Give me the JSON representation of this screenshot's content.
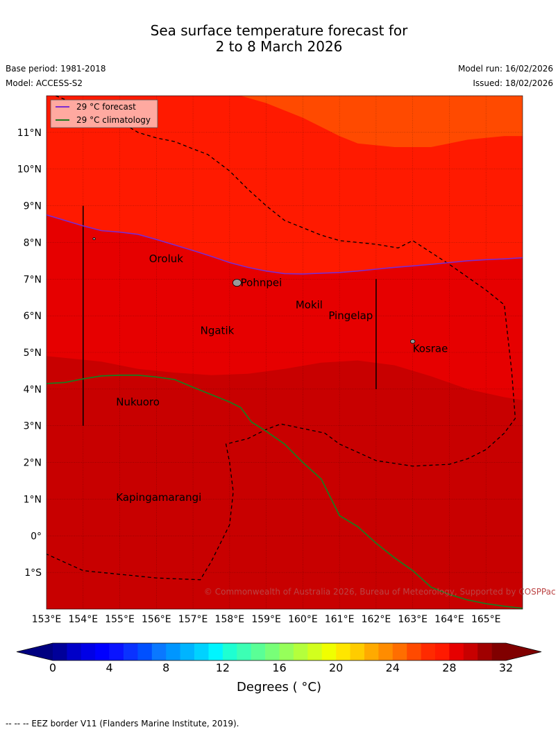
{
  "title": {
    "line1": "Sea surface temperature forecast for",
    "line2": "2 to 8 March 2026"
  },
  "meta": {
    "base_period": "Base period: 1981-2018",
    "model": "Model: ACCESS-S2",
    "model_run": "Model run: 16/02/2026",
    "issued": "Issued: 18/02/2026"
  },
  "map": {
    "lon_range": [
      153,
      166
    ],
    "lat_range": [
      -2,
      12
    ],
    "lon_ticks": [
      "153°E",
      "154°E",
      "155°E",
      "156°E",
      "157°E",
      "158°E",
      "159°E",
      "160°E",
      "161°E",
      "162°E",
      "163°E",
      "164°E",
      "165°E"
    ],
    "lat_ticks": [
      "1°S",
      "0°",
      "1°N",
      "2°N",
      "3°N",
      "4°N",
      "5°N",
      "6°N",
      "7°N",
      "8°N",
      "9°N",
      "10°N",
      "11°N"
    ],
    "copyright": "© Commonwealth of Australia 2026, Bureau of Meteorology, Supported by COSPPac",
    "legend": {
      "forecast": "29 °C  forecast",
      "climatology": "29 °C  climatology",
      "forecast_color": "#7b2bd0",
      "climatology_color": "#1e7a1e"
    },
    "places": [
      {
        "name": "Oroluk",
        "lon": 155.8,
        "lat": 7.55
      },
      {
        "name": "Pohnpei",
        "lon": 158.3,
        "lat": 6.9
      },
      {
        "name": "Mokil",
        "lon": 159.8,
        "lat": 6.3
      },
      {
        "name": "Pingelap",
        "lon": 160.7,
        "lat": 6.0
      },
      {
        "name": "Ngatik",
        "lon": 157.2,
        "lat": 5.6
      },
      {
        "name": "Kosrae",
        "lon": 163.0,
        "lat": 5.1
      },
      {
        "name": "Nukuoro",
        "lon": 154.9,
        "lat": 3.65
      },
      {
        "name": "Kapingamarangi",
        "lon": 154.9,
        "lat": 1.05
      }
    ],
    "islands": [
      {
        "lon": 158.2,
        "lat": 6.9,
        "r": 1.0
      },
      {
        "lon": 163.0,
        "lat": 5.3,
        "r": 0.55
      },
      {
        "lon": 154.3,
        "lat": 8.1,
        "r": 0.3
      }
    ],
    "forecast_29_isotherm": [
      [
        153,
        8.75
      ],
      [
        153.5,
        8.6
      ],
      [
        154,
        8.45
      ],
      [
        154.5,
        8.32
      ],
      [
        155,
        8.28
      ],
      [
        155.5,
        8.22
      ],
      [
        156,
        8.08
      ],
      [
        156.5,
        7.93
      ],
      [
        157,
        7.78
      ],
      [
        157.5,
        7.62
      ],
      [
        158,
        7.45
      ],
      [
        158.5,
        7.32
      ],
      [
        159,
        7.22
      ],
      [
        159.5,
        7.15
      ],
      [
        160,
        7.14
      ],
      [
        160.5,
        7.16
      ],
      [
        161,
        7.18
      ],
      [
        161.5,
        7.22
      ],
      [
        162,
        7.27
      ],
      [
        162.5,
        7.32
      ],
      [
        163,
        7.36
      ],
      [
        163.5,
        7.4
      ],
      [
        164,
        7.45
      ],
      [
        164.5,
        7.5
      ],
      [
        165,
        7.53
      ],
      [
        165.5,
        7.55
      ],
      [
        166,
        7.58
      ]
    ],
    "climatology_29_isotherm": [
      [
        153,
        4.15
      ],
      [
        153.5,
        4.18
      ],
      [
        154,
        4.28
      ],
      [
        154.5,
        4.36
      ],
      [
        155,
        4.38
      ],
      [
        155.5,
        4.38
      ],
      [
        156,
        4.33
      ],
      [
        156.5,
        4.26
      ],
      [
        157,
        4.05
      ],
      [
        157.5,
        3.85
      ],
      [
        158,
        3.65
      ],
      [
        158.3,
        3.5
      ],
      [
        158.6,
        3.1
      ],
      [
        159,
        2.85
      ],
      [
        159.5,
        2.5
      ],
      [
        160,
        2.0
      ],
      [
        160.5,
        1.55
      ],
      [
        161,
        0.55
      ],
      [
        161.5,
        0.25
      ],
      [
        162,
        -0.2
      ],
      [
        162.5,
        -0.6
      ],
      [
        163,
        -0.95
      ],
      [
        163.5,
        -1.4
      ],
      [
        164,
        -1.6
      ],
      [
        164.5,
        -1.75
      ],
      [
        165,
        -1.85
      ],
      [
        165.5,
        -1.92
      ],
      [
        166,
        -1.98
      ]
    ],
    "eez_border": [
      [
        153.25,
        12
      ],
      [
        154,
        11.7
      ],
      [
        155,
        11.3
      ],
      [
        155.5,
        11.0
      ],
      [
        156,
        10.85
      ],
      [
        156.5,
        10.75
      ],
      [
        157,
        10.55
      ],
      [
        157.4,
        10.4
      ],
      [
        158,
        9.95
      ],
      [
        158.5,
        9.45
      ],
      [
        159,
        9.0
      ],
      [
        159.5,
        8.6
      ],
      [
        160,
        8.4
      ],
      [
        160.5,
        8.2
      ],
      [
        161,
        8.05
      ],
      [
        162,
        7.95
      ],
      [
        162.6,
        7.85
      ],
      [
        163,
        8.05
      ],
      [
        164,
        7.4
      ],
      [
        165,
        6.7
      ],
      [
        165.5,
        6.3
      ],
      [
        165.7,
        4.5
      ],
      [
        165.8,
        3.2
      ],
      [
        165.5,
        2.8
      ],
      [
        165,
        2.35
      ],
      [
        164.5,
        2.1
      ],
      [
        164,
        1.95
      ],
      [
        163,
        1.9
      ],
      [
        162,
        2.05
      ],
      [
        161,
        2.5
      ],
      [
        160.6,
        2.8
      ],
      [
        159.4,
        3.05
      ],
      [
        159,
        2.9
      ],
      [
        158.5,
        2.65
      ],
      [
        157.9,
        2.5
      ],
      [
        158,
        2.0
      ],
      [
        158.1,
        1.2
      ],
      [
        158,
        0.3
      ],
      [
        157.5,
        -0.7
      ],
      [
        157.2,
        -1.2
      ],
      [
        156,
        -1.15
      ],
      [
        155,
        -1.05
      ],
      [
        154,
        -0.95
      ],
      [
        153,
        -0.5
      ]
    ],
    "vertical_lines": [
      {
        "lon": 154.0,
        "lat_from": 3.0,
        "lat_to": 9.0
      },
      {
        "lon": 162.0,
        "lat_from": 4.0,
        "lat_to": 7.0
      }
    ],
    "regions": {
      "orange_top": [
        [
          153,
          12
        ],
        [
          158.3,
          12
        ],
        [
          159,
          11.8
        ],
        [
          160,
          11.4
        ],
        [
          161,
          10.9
        ],
        [
          161.5,
          10.7
        ],
        [
          162.5,
          10.6
        ],
        [
          163.5,
          10.6
        ],
        [
          164.5,
          10.8
        ],
        [
          165.5,
          10.9
        ],
        [
          166,
          10.9
        ],
        [
          166,
          12
        ]
      ],
      "band_low_boundary": [
        [
          153,
          4.9
        ],
        [
          153.5,
          4.85
        ],
        [
          154.5,
          4.75
        ],
        [
          155.5,
          4.55
        ],
        [
          156.5,
          4.45
        ],
        [
          157.5,
          4.38
        ],
        [
          158.5,
          4.42
        ],
        [
          159.5,
          4.55
        ],
        [
          160.5,
          4.72
        ],
        [
          161.5,
          4.78
        ],
        [
          162.5,
          4.65
        ],
        [
          163.5,
          4.35
        ],
        [
          164.5,
          4.0
        ],
        [
          165.5,
          3.78
        ],
        [
          166,
          3.7
        ]
      ]
    },
    "colors": {
      "orange": "#ff4a00",
      "red_bright": "#ff1a00",
      "red_mid": "#e60000",
      "red_dark": "#c80000"
    }
  },
  "colorbar": {
    "title": "Degrees ( °C)",
    "tick_labels": [
      "0",
      "4",
      "8",
      "12",
      "16",
      "20",
      "24",
      "28",
      "32"
    ],
    "tick_values": [
      0,
      4,
      8,
      12,
      16,
      20,
      24,
      28,
      32
    ],
    "range": [
      0,
      32
    ],
    "colors": [
      "#000099",
      "#0000c8",
      "#0000e6",
      "#0000ff",
      "#0a14ff",
      "#0a32ff",
      "#0050ff",
      "#0a78ff",
      "#0096ff",
      "#00b4ff",
      "#00d2ff",
      "#00f5ff",
      "#1effd2",
      "#3cffb4",
      "#5aff96",
      "#78ff78",
      "#96ff5a",
      "#b4ff3c",
      "#d2ff1e",
      "#f0ff00",
      "#ffe600",
      "#ffcc00",
      "#ffaa00",
      "#ff8c00",
      "#ff6e00",
      "#ff4a00",
      "#ff2a00",
      "#ff1a00",
      "#e60000",
      "#c80000",
      "#a00000",
      "#800000"
    ],
    "under_color": "#000080",
    "over_color": "#800000"
  },
  "footnote": "--  --  -- EEZ border V11 (Flanders Marine Institute, 2019)."
}
